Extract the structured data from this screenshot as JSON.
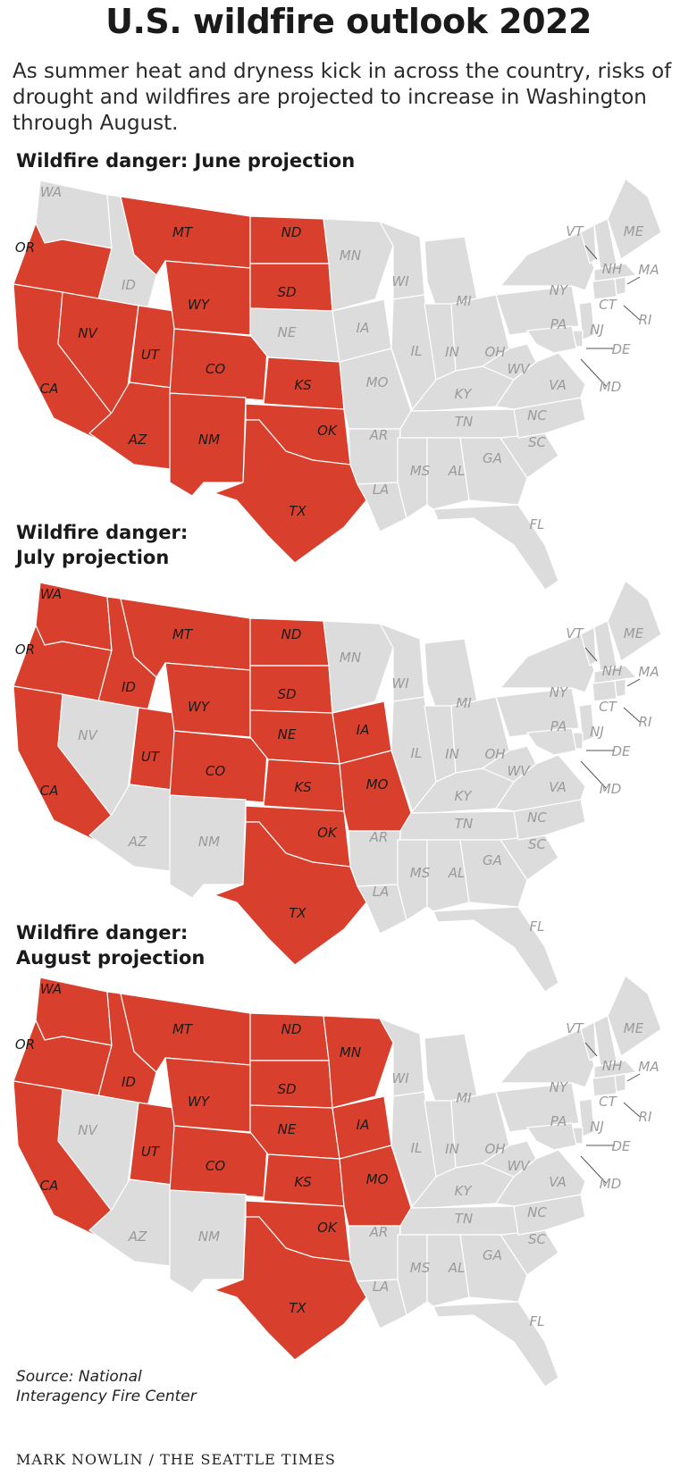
{
  "title": "U.S. wildfire outlook 2022",
  "intro": "As summer heat and dryness kick in across the country, risks of drought and wildfires are projected to increase in Washington through August.",
  "colors": {
    "danger": "#d8402d",
    "land": "#dcdcdc",
    "border": "#ffffff",
    "label_normal": "#9a9a9a",
    "label_danger": "#1a1a1a"
  },
  "panels": [
    {
      "title_lines": [
        "Wildfire danger: June projection"
      ],
      "danger_states": [
        "OR",
        "CA",
        "NV",
        "UT",
        "MT",
        "ND",
        "SD",
        "WY",
        "CO",
        "KS",
        "AZ",
        "NM",
        "TX",
        "OK"
      ]
    },
    {
      "title_lines": [
        "Wildfire danger:",
        "July projection"
      ],
      "danger_states": [
        "WA",
        "OR",
        "CA",
        "ID",
        "MT",
        "ND",
        "SD",
        "WY",
        "UT",
        "CO",
        "NE",
        "KS",
        "IA",
        "MO",
        "OK",
        "TX"
      ]
    },
    {
      "title_lines": [
        "Wildfire danger:",
        "August projection"
      ],
      "danger_states": [
        "WA",
        "OR",
        "CA",
        "ID",
        "MT",
        "ND",
        "SD",
        "WY",
        "UT",
        "CO",
        "NE",
        "KS",
        "IA",
        "MO",
        "MN",
        "OK",
        "TX"
      ]
    }
  ],
  "state_labels": [
    "WA",
    "OR",
    "CA",
    "ID",
    "NV",
    "UT",
    "AZ",
    "MT",
    "WY",
    "CO",
    "NM",
    "ND",
    "SD",
    "NE",
    "KS",
    "OK",
    "TX",
    "MN",
    "IA",
    "MO",
    "AR",
    "LA",
    "WI",
    "IL",
    "MI",
    "IN",
    "OH",
    "KY",
    "TN",
    "MS",
    "AL",
    "GA",
    "FL",
    "SC",
    "NC",
    "VA",
    "WV",
    "PA",
    "NY",
    "VT",
    "NH",
    "ME",
    "MA",
    "CT",
    "RI",
    "NJ",
    "DE",
    "MD"
  ],
  "source_lines": [
    "Source: National",
    "Interagency Fire Center"
  ],
  "credit": "MARK NOWLIN / THE SEATTLE TIMES"
}
